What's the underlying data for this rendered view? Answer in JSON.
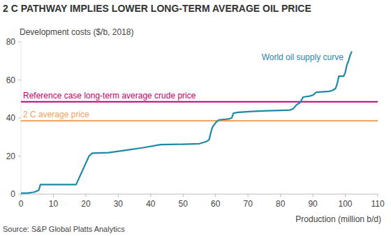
{
  "chart_data": {
    "type": "line",
    "title": "2 C PATHWAY IMPLIES LOWER LONG-TERM AVERAGE OIL PRICE",
    "y_label": "Development costs ($/b, 2018)",
    "x_label": "Production (million b/d)",
    "source": "Source: S&P Global Platts Analytics",
    "xlim": [
      0,
      110
    ],
    "ylim": [
      0,
      80
    ],
    "xticks": [
      0,
      10,
      20,
      30,
      40,
      50,
      60,
      70,
      80,
      90,
      100,
      110
    ],
    "yticks": [
      0,
      20,
      40,
      60,
      80
    ],
    "grid": false,
    "series": [
      {
        "name": "World oil supply curve",
        "color": "#1f88a8",
        "x": [
          0,
          2,
          4,
          5.5,
          6,
          17,
          21,
          22,
          27,
          32,
          38,
          43,
          50,
          55,
          57,
          58,
          58.5,
          59,
          60,
          61,
          64,
          65,
          65.5,
          67,
          72,
          76,
          80,
          83,
          84,
          85,
          86,
          87,
          89,
          90,
          91,
          95,
          96,
          97,
          97.5,
          98,
          99.5,
          100,
          100.5,
          101,
          101.5,
          102
        ],
        "values": [
          0.5,
          0.5,
          1,
          2,
          5,
          5,
          20,
          21.5,
          21.8,
          23,
          24.5,
          26,
          26.2,
          26.5,
          27.5,
          28.5,
          32,
          35,
          37.5,
          39,
          39.5,
          40,
          42.5,
          43,
          43.5,
          43.8,
          44,
          44.2,
          45,
          47,
          48,
          51,
          51.5,
          52,
          53.5,
          54,
          54.5,
          55.5,
          58,
          62,
          62,
          64,
          68,
          70,
          73,
          75
        ]
      },
      {
        "name": "Reference case long-term average crude price",
        "color": "#c4006f",
        "x": [
          0,
          110
        ],
        "values": [
          48.5,
          48.5
        ]
      },
      {
        "name": "2 C average price",
        "color": "#f5a25d",
        "x": [
          0,
          110
        ],
        "values": [
          38.5,
          38.5
        ]
      }
    ]
  }
}
